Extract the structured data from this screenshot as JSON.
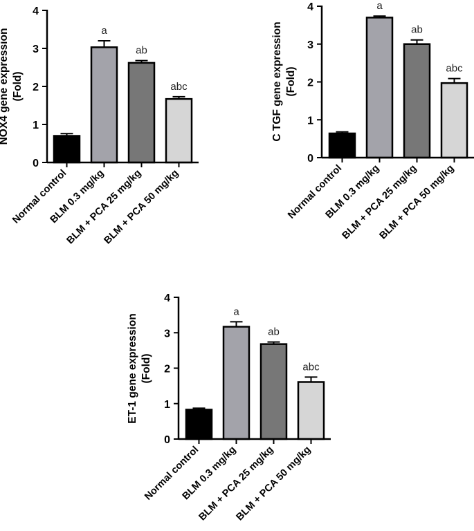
{
  "chart_data": [
    {
      "type": "bar",
      "ylabel": "NOX4 gene expression",
      "ylabel2": "(Fold)",
      "ylim": [
        0,
        4
      ],
      "yticks": [
        "0",
        "1",
        "2",
        "3",
        "4"
      ],
      "categories": [
        "Normal control",
        "BLM 0.3 mg/kg",
        "BLM + PCA 25 mg/kg",
        "BLM + PCA 50 mg/kg"
      ],
      "values": [
        0.7,
        3.03,
        2.62,
        1.67
      ],
      "errors": [
        0.06,
        0.17,
        0.06,
        0.06
      ],
      "annotations": [
        "",
        "a",
        "ab",
        "abc"
      ],
      "colors": [
        "#000000",
        "#a3a3aa",
        "#777777",
        "#d6d6d6"
      ]
    },
    {
      "type": "bar",
      "ylabel": "C TGF gene expression",
      "ylabel2": "(Fold)",
      "ylim": [
        0,
        4
      ],
      "yticks": [
        "0",
        "1",
        "2",
        "3",
        "4"
      ],
      "categories": [
        "Normal control",
        "BLM 0.3 mg/kg",
        "BLM + PCA 25 mg/kg",
        "BLM + PCA 50 mg/kg"
      ],
      "values": [
        0.64,
        3.7,
        3.0,
        1.97
      ],
      "errors": [
        0.04,
        0.04,
        0.11,
        0.12
      ],
      "annotations": [
        "",
        "a",
        "ab",
        "abc"
      ],
      "colors": [
        "#000000",
        "#a3a3aa",
        "#777777",
        "#d6d6d6"
      ]
    },
    {
      "type": "bar",
      "ylabel": "ET-1 gene expression",
      "ylabel2": "(Fold)",
      "ylim": [
        0,
        4
      ],
      "yticks": [
        "0",
        "1",
        "2",
        "3",
        "4"
      ],
      "categories": [
        "Normal control",
        "BLM 0.3 mg/kg",
        "BLM + PCA 25 mg/kg",
        "BLM + PCA 50 mg/kg"
      ],
      "values": [
        0.83,
        3.17,
        2.68,
        1.61
      ],
      "errors": [
        0.04,
        0.14,
        0.06,
        0.14
      ],
      "annotations": [
        "",
        "a",
        "ab",
        "abc"
      ],
      "colors": [
        "#000000",
        "#a3a3aa",
        "#777777",
        "#d6d6d6"
      ]
    }
  ]
}
